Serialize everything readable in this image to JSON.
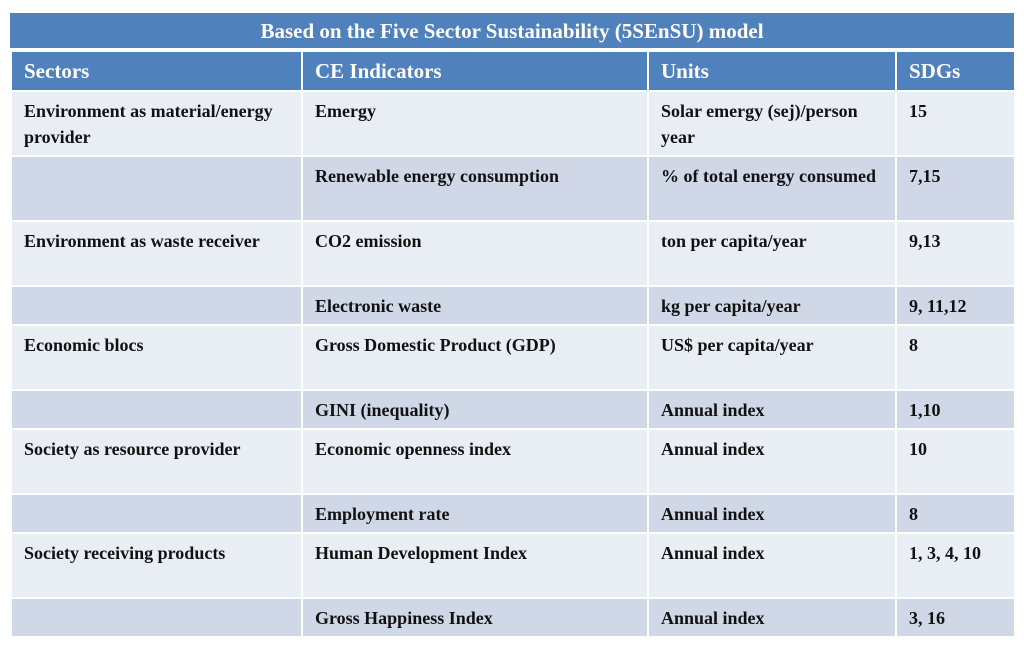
{
  "title": "Based on the Five Sector Sustainability (5SEnSU) model",
  "columns": [
    "Sectors",
    "CE Indicators",
    "Units",
    "SDGs"
  ],
  "rows": [
    {
      "sector": "Environment as material/energy provider",
      "indicator": "Emergy",
      "unit": "Solar emergy (sej)/person year",
      "sdgs": "15"
    },
    {
      "sector": "",
      "indicator": "Renewable energy consumption",
      "unit": "% of total energy consumed",
      "sdgs": "7,15"
    },
    {
      "sector": "Environment as waste receiver",
      "indicator": "CO2 emission",
      "unit": "ton per capita/year",
      "sdgs": "9,13"
    },
    {
      "sector": "",
      "indicator": "Electronic waste",
      "unit": "kg per capita/year",
      "sdgs": "9, 11,12"
    },
    {
      "sector": "Economic blocs",
      "indicator": "Gross Domestic Product (GDP)",
      "unit": "US$ per capita/year",
      "sdgs": "8"
    },
    {
      "sector": "",
      "indicator": "GINI (inequality)",
      "unit": "Annual index",
      "sdgs": "1,10"
    },
    {
      "sector": "Society as  resource provider",
      "indicator": "Economic openness index",
      "unit": "Annual index",
      "sdgs": "10"
    },
    {
      "sector": "",
      "indicator": "Employment rate",
      "unit": "Annual index",
      "sdgs": "8"
    },
    {
      "sector": "Society receiving products",
      "indicator": "Human Development Index",
      "unit": "Annual index",
      "sdgs": "1, 3, 4, 10"
    },
    {
      "sector": "",
      "indicator": "Gross Happiness Index",
      "unit": "Annual index",
      "sdgs": "3, 16"
    }
  ],
  "colors": {
    "header_bg": "#4f81bd",
    "row_light": "#e9edf4",
    "row_dark": "#d0d8e8"
  }
}
